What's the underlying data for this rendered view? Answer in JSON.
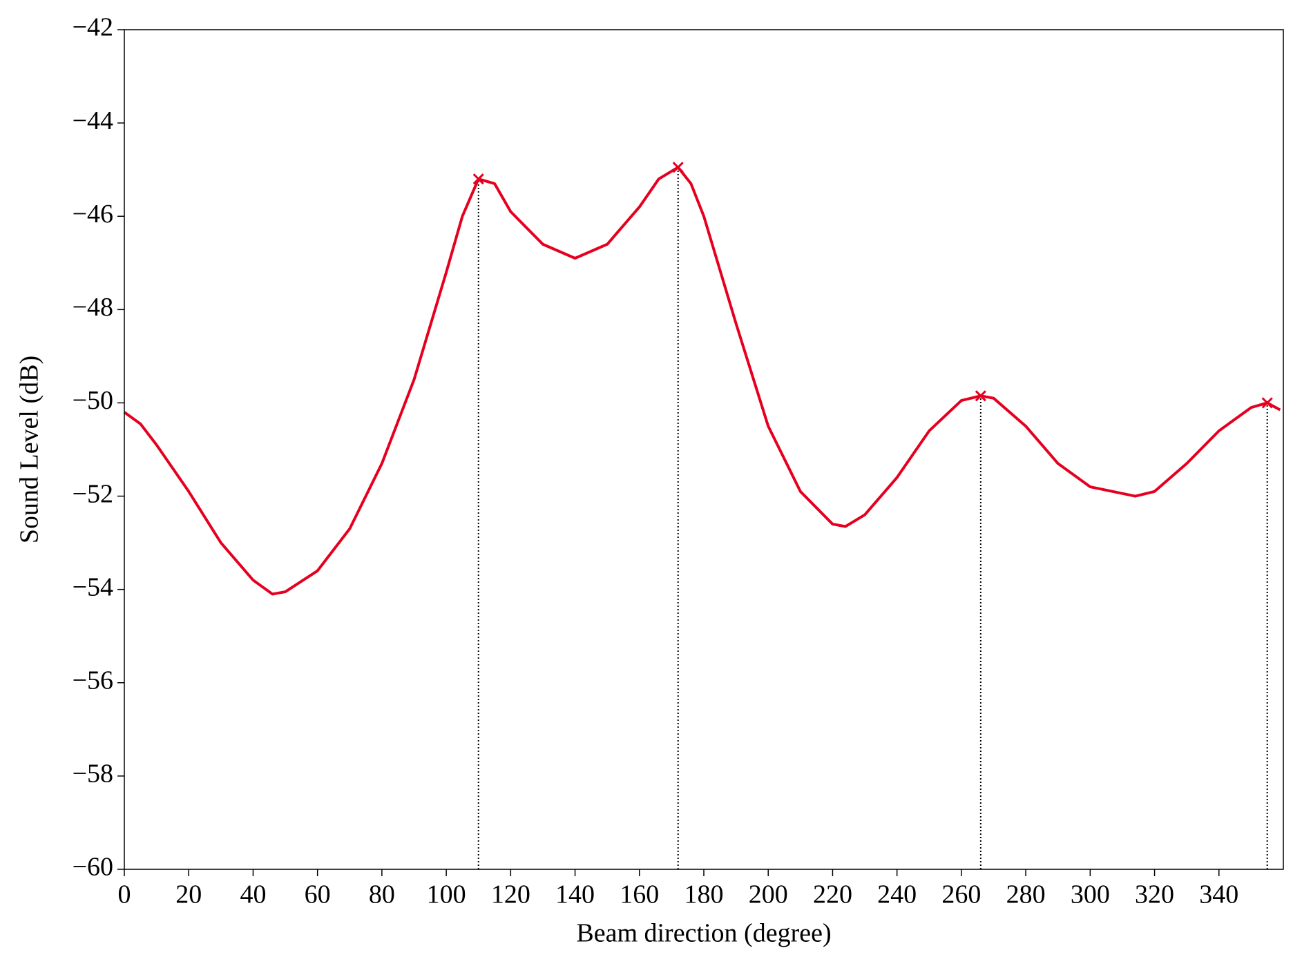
{
  "chart_data": {
    "type": "line",
    "xlabel": "Beam direction (degree)",
    "ylabel": "Sound Level (dB)",
    "x": [
      0,
      5,
      10,
      20,
      30,
      40,
      46,
      50,
      60,
      70,
      80,
      90,
      100,
      105,
      110,
      115,
      120,
      130,
      140,
      150,
      160,
      166,
      172,
      176,
      180,
      190,
      200,
      210,
      220,
      224,
      230,
      240,
      250,
      260,
      266,
      270,
      280,
      290,
      300,
      314,
      320,
      330,
      340,
      350,
      355,
      359
    ],
    "series": [
      {
        "color": "#e6001f",
        "values": [
          -50.2,
          -50.45,
          -50.9,
          -51.9,
          -53.0,
          -53.8,
          -54.1,
          -54.05,
          -53.6,
          -52.7,
          -51.3,
          -49.5,
          -47.2,
          -46.0,
          -45.2,
          -45.3,
          -45.9,
          -46.6,
          -46.9,
          -46.6,
          -45.8,
          -45.2,
          -44.95,
          -45.3,
          -46.0,
          -48.3,
          -50.5,
          -51.9,
          -52.6,
          -52.65,
          -52.4,
          -51.6,
          -50.6,
          -49.95,
          -49.85,
          -49.9,
          -50.5,
          -51.3,
          -51.8,
          -52.0,
          -51.9,
          -51.3,
          -50.6,
          -50.1,
          -50.0,
          -50.15
        ]
      }
    ],
    "peaks": {
      "color": "#e6001f",
      "x": [
        110,
        172,
        266,
        355
      ],
      "values": [
        -45.2,
        -44.95,
        -49.85,
        -50.0
      ]
    },
    "xlim": [
      0,
      360
    ],
    "ylim": [
      -60,
      -42
    ],
    "xticks": [
      0,
      20,
      40,
      60,
      80,
      100,
      120,
      140,
      160,
      180,
      200,
      220,
      240,
      260,
      280,
      300,
      320,
      340
    ],
    "yticks": [
      {
        "value": -60,
        "label": "−60"
      },
      {
        "value": -58,
        "label": "−58"
      },
      {
        "value": -56,
        "label": "−56"
      },
      {
        "value": -54,
        "label": "−54"
      },
      {
        "value": -52,
        "label": "−52"
      },
      {
        "value": -50,
        "label": "−50"
      },
      {
        "value": -48,
        "label": "−48"
      },
      {
        "value": -46,
        "label": "−46"
      },
      {
        "value": -44,
        "label": "−44"
      },
      {
        "value": -42,
        "label": "−42"
      }
    ]
  }
}
